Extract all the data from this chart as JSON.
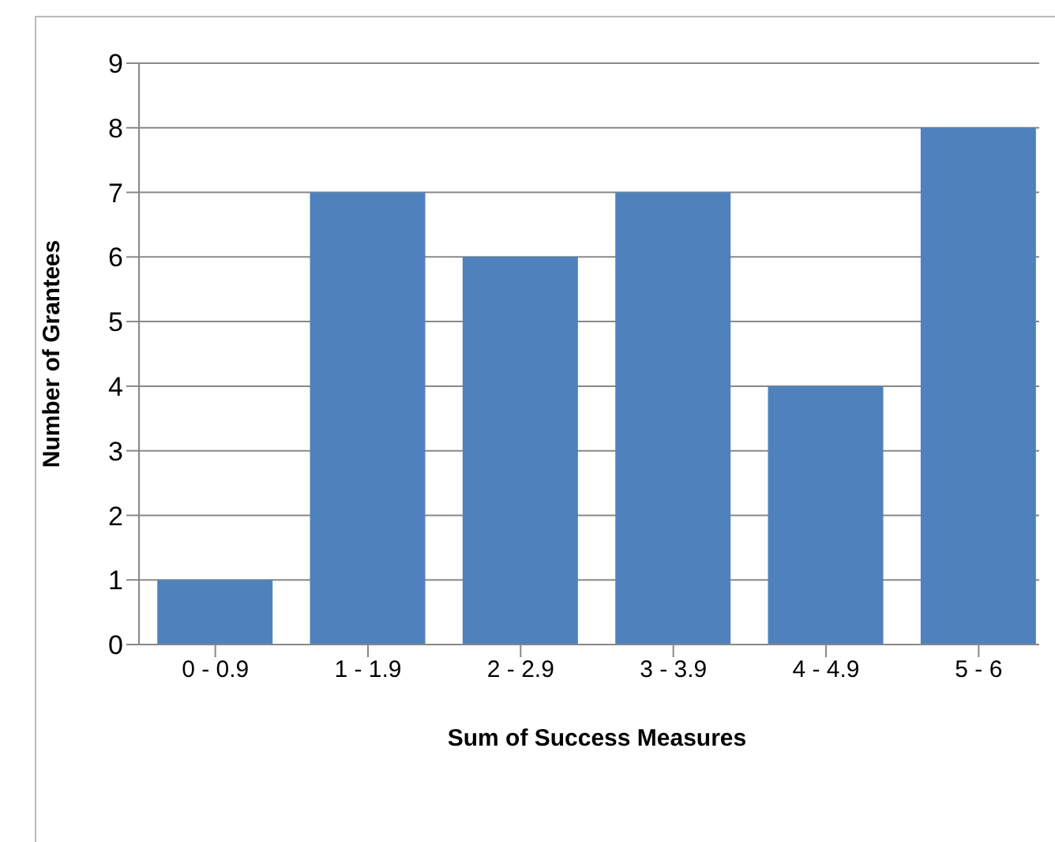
{
  "chart_data": {
    "type": "bar",
    "categories": [
      "0 - 0.9",
      "1 - 1.9",
      "2 - 2.9",
      "3 - 3.9",
      "4 - 4.9",
      "5 - 6"
    ],
    "values": [
      1,
      7,
      6,
      7,
      4,
      8
    ],
    "color": "#4f81bd",
    "xlabel": "Sum of Success Measures",
    "ylabel": "Number of Grantees",
    "ylim": [
      0,
      9
    ],
    "yticks": [
      0,
      1,
      2,
      3,
      4,
      5,
      6,
      7,
      8,
      9
    ],
    "grid": "y",
    "legend": false
  }
}
